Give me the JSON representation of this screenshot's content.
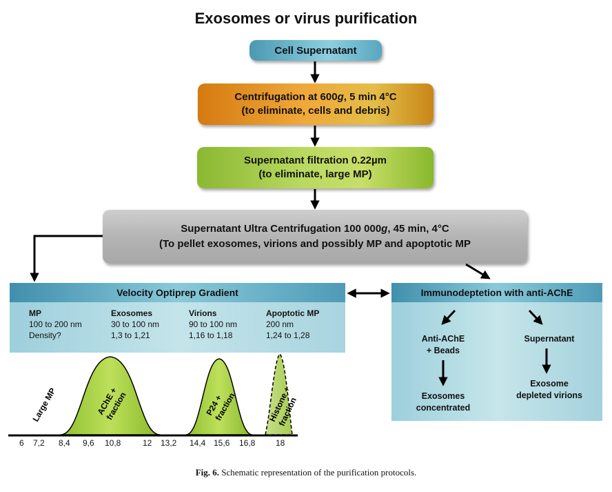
{
  "title": "Exosomes or virus purification",
  "steps": {
    "cell": "Cell Supernatant",
    "centrifugation": {
      "line1_a": "Centrifugation at 600",
      "line1_g": "g",
      "line1_b": ", 5 min 4°C",
      "line2": "(to eliminate, cells and debris)"
    },
    "filtration": {
      "line1": "Supernatant filtration 0.22µm",
      "line2": "(to eliminate, large MP)"
    },
    "ultra": {
      "line1_a": "Supernatant Ultra Centrifugation 100 000",
      "line1_g": "g",
      "line1_b": ", 45 min, 4°C",
      "line2": "(To pellet exosomes, virions and possibly MP and apoptotic MP"
    }
  },
  "velocity": {
    "header": "Velocity Optiprep Gradient",
    "columns": [
      {
        "name": "MP",
        "size": "100 to 200 nm",
        "density": "Density?"
      },
      {
        "name": "Exosomes",
        "size": "30 to 100 nm",
        "density": "1,3 to 1,21"
      },
      {
        "name": "Virions",
        "size": "90 to 100 nm",
        "density": "1,16 to 1,18"
      },
      {
        "name": "Apoptotic MP",
        "size": "200 nm",
        "density": "1,24 to 1,28"
      }
    ]
  },
  "immuno": {
    "header": "Immunodeptetion with anti-AChE",
    "left_top_1": "Anti-AChE",
    "left_top_2": "+ Beads",
    "left_bottom_1": "Exosomes",
    "left_bottom_2": "concentrated",
    "right_top": "Supernatant",
    "right_bottom_1": "Exosome",
    "right_bottom_2": "depleted virions"
  },
  "gradient": {
    "large_mp": "Large MP",
    "peak1": [
      "AChE +",
      "fraction"
    ],
    "peak2": [
      "P24 +",
      "fraction"
    ],
    "peak3": [
      "Histone +",
      "fraction"
    ],
    "axis_ticks": [
      "6",
      "7,2",
      "8,4",
      "9,6",
      "10,8",
      "12",
      "13,2",
      "14,4",
      "15,6",
      "16,8",
      "18"
    ]
  },
  "caption": {
    "label": "Fig. 6.",
    "text": " Schematic representation of the purification protocols."
  },
  "colors": {
    "green": "#9cc832",
    "teal": "#6fb5c9",
    "orange": "#e89a2a",
    "gray": "#bdbdbd"
  }
}
